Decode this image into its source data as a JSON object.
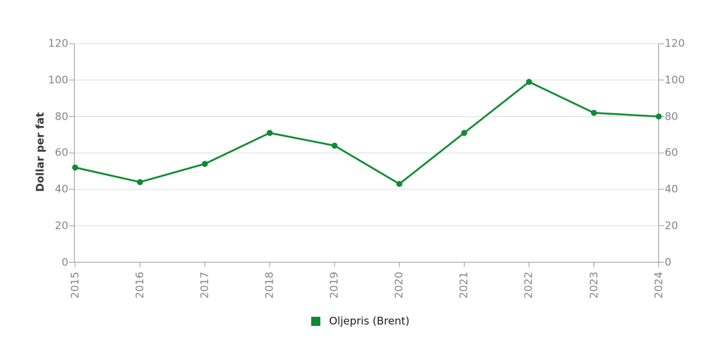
{
  "chart_data": {
    "type": "line",
    "categories": [
      "2015",
      "2016",
      "2017",
      "2018",
      "2019",
      "2020",
      "2021",
      "2022",
      "2023",
      "2024"
    ],
    "series": [
      {
        "name": "Oljepris (Brent)",
        "values": [
          52,
          44,
          54,
          71,
          64,
          43,
          71,
          99,
          82,
          80
        ]
      }
    ],
    "title": "",
    "xlabel": "",
    "ylabel": "Dollar per fat",
    "ylim": [
      0,
      120
    ],
    "yticks": [
      0,
      20,
      40,
      60,
      80,
      100,
      120
    ],
    "grid": true,
    "legend_position": "bottom",
    "dual_y_axis": true
  },
  "colors": {
    "series_green": "#0e8c31",
    "gridline": "#dddddd",
    "axis": "#9b9b9b",
    "tick_label": "#858585",
    "axis_title": "#3b3b3b",
    "legend_text": "#1a1a1a",
    "background": "#ffffff"
  }
}
